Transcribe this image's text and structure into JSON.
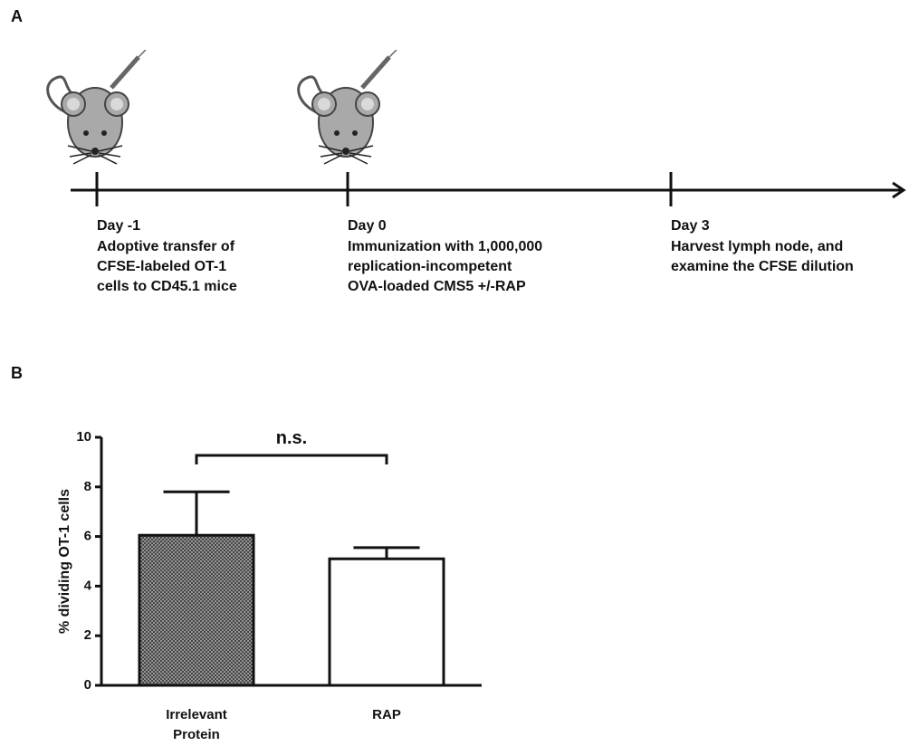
{
  "panel_a": {
    "label": "A",
    "events": [
      {
        "day": "Day -1",
        "lines": [
          "Adoptive transfer of",
          "CFSE-labeled OT-1",
          "cells to CD45.1 mice"
        ]
      },
      {
        "day": "Day 0",
        "lines": [
          "Immunization with 1,000,000",
          "replication-incompetent",
          "OVA-loaded CMS5 +/-RAP"
        ]
      },
      {
        "day": "Day 3",
        "lines": [
          "Harvest lymph node, and",
          "examine the CFSE dilution"
        ]
      }
    ]
  },
  "panel_b": {
    "label": "B"
  },
  "chart_data": {
    "type": "bar",
    "y_label": "% dividing OT-1 cells",
    "categories": [
      [
        "Irrelevant",
        "Protein"
      ],
      [
        "RAP"
      ]
    ],
    "values": [
      6.05,
      5.1
    ],
    "errors": [
      1.75,
      0.45
    ],
    "colors": [
      "#a8a8a8",
      "#ffffff"
    ],
    "ylim": [
      0,
      10
    ],
    "yticks": [
      0,
      2,
      4,
      6,
      8,
      10
    ],
    "annotation": "n.s."
  }
}
